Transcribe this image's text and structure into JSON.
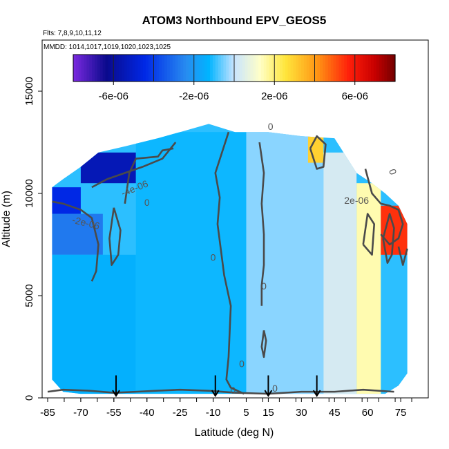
{
  "chart_data": {
    "type": "heatmap",
    "title": "ATOM3 Northbound EPV_GEOS5",
    "subtitle_flights": "Flts: 7,8,9,10,11,12",
    "subtitle_dates": "MMDD: 1014,1017,1019,1020,1023,1025",
    "xlabel": "Latitude (deg N)",
    "ylabel": "Altitude (m)",
    "xlim": [
      -85,
      85
    ],
    "ylim": [
      0,
      17500
    ],
    "x_ticks": [
      "-85",
      "-70",
      "-55",
      "-40",
      "-25",
      "-10",
      "5",
      "15",
      "30",
      "45",
      "60",
      "75"
    ],
    "x_tick_values": [
      -85,
      -70,
      -55,
      -40,
      -25,
      -10,
      5,
      15,
      30,
      45,
      60,
      75
    ],
    "y_ticks": [
      "0",
      "5000",
      "10000",
      "15000"
    ],
    "y_tick_values": [
      0,
      5000,
      10000,
      15000
    ],
    "colorbar": {
      "min": -8e-06,
      "max": 8e-06,
      "tick_labels": [
        "-6e-06",
        "-2e-06",
        "2e-06",
        "6e-06"
      ],
      "tick_values": [
        -6e-06,
        -2e-06,
        2e-06,
        6e-06
      ]
    },
    "contour_labels": [
      "-4e-06",
      "-2e-06",
      "0",
      "0",
      "0",
      "0",
      "0",
      "0",
      "0",
      "0",
      "2e-06"
    ],
    "flight_marker_latitudes": [
      -54,
      -9,
      15,
      37
    ],
    "envelope": [
      {
        "lat": -83,
        "top": 10300,
        "bottom": 900
      },
      {
        "lat": -78,
        "top": 10700,
        "bottom": 300
      },
      {
        "lat": -70,
        "top": 11300,
        "bottom": 200
      },
      {
        "lat": -62,
        "top": 12000,
        "bottom": 200
      },
      {
        "lat": -50,
        "top": 12300,
        "bottom": 200
      },
      {
        "lat": -35,
        "top": 12700,
        "bottom": 200
      },
      {
        "lat": -25,
        "top": 13000,
        "bottom": 200
      },
      {
        "lat": -12,
        "top": 13400,
        "bottom": 200
      },
      {
        "lat": 0,
        "top": 13000,
        "bottom": 200
      },
      {
        "lat": 15,
        "top": 13000,
        "bottom": 200
      },
      {
        "lat": 30,
        "top": 12800,
        "bottom": 200
      },
      {
        "lat": 45,
        "top": 12700,
        "bottom": 200
      },
      {
        "lat": 55,
        "top": 11000,
        "bottom": 200
      },
      {
        "lat": 62,
        "top": 10500,
        "bottom": 200
      },
      {
        "lat": 68,
        "top": 10000,
        "bottom": 200
      },
      {
        "lat": 74,
        "top": 9400,
        "bottom": 600
      },
      {
        "lat": 78,
        "top": 8500,
        "bottom": 1200
      }
    ],
    "epv_field": [
      {
        "lat_range": [
          -83,
          -70
        ],
        "alt_range": [
          9000,
          10300
        ],
        "value": -4.5e-06
      },
      {
        "lat_range": [
          -70,
          -45
        ],
        "alt_range": [
          10500,
          12000
        ],
        "value": -5.5e-06
      },
      {
        "lat_range": [
          -83,
          -60
        ],
        "alt_range": [
          7000,
          9000
        ],
        "value": -2.8e-06
      },
      {
        "lat_range": [
          -83,
          -45
        ],
        "alt_range": [
          200,
          7000
        ],
        "value": -1.4e-06
      },
      {
        "lat_range": [
          -45,
          5
        ],
        "alt_range": [
          200,
          13000
        ],
        "value": -1.2e-06
      },
      {
        "lat_range": [
          5,
          40
        ],
        "alt_range": [
          200,
          13000
        ],
        "value": -4e-07
      },
      {
        "lat_range": [
          40,
          55
        ],
        "alt_range": [
          200,
          12000
        ],
        "value": 3e-07
      },
      {
        "lat_range": [
          55,
          66
        ],
        "alt_range": [
          200,
          10500
        ],
        "value": 1.5e-06
      },
      {
        "lat_range": [
          66,
          78
        ],
        "alt_range": [
          7000,
          9400
        ],
        "value": 5.5e-06
      },
      {
        "lat_range": [
          33,
          40
        ],
        "alt_range": [
          11500,
          12800
        ],
        "value": 3e-06
      }
    ]
  }
}
